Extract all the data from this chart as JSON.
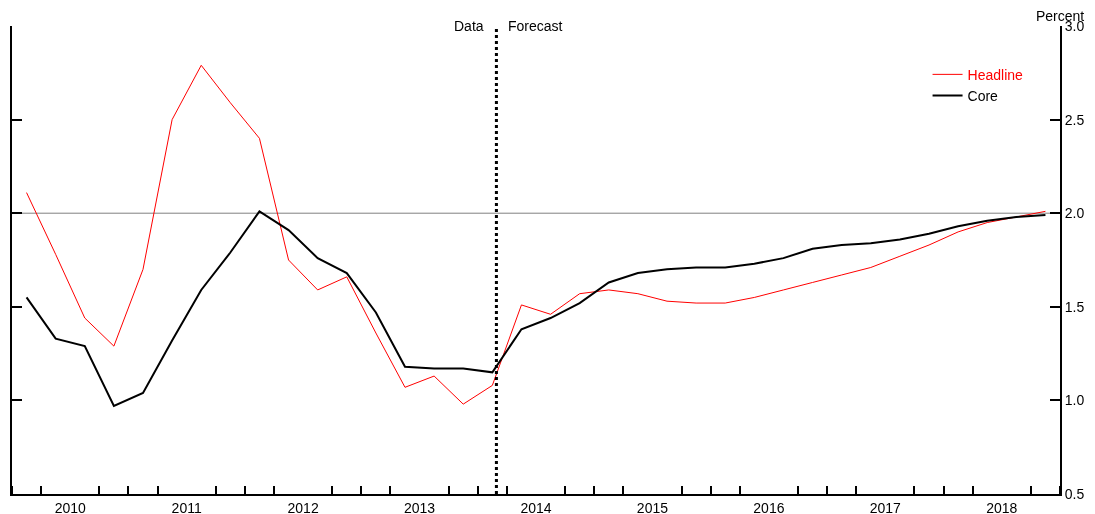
{
  "chart_data": {
    "type": "line",
    "ylabel": "Percent",
    "x": [
      2010.125,
      2010.375,
      2010.625,
      2010.875,
      2011.125,
      2011.375,
      2011.625,
      2011.875,
      2012.125,
      2012.375,
      2012.625,
      2012.875,
      2013.125,
      2013.375,
      2013.625,
      2013.875,
      2014.125,
      2014.375,
      2014.625,
      2014.875,
      2015.125,
      2015.375,
      2015.625,
      2015.875,
      2016.125,
      2016.375,
      2016.625,
      2016.875,
      2017.125,
      2017.375,
      2017.625,
      2017.875,
      2018.125,
      2018.375,
      2018.625,
      2018.875
    ],
    "series": [
      {
        "name": "Headline",
        "color": "#ff0000",
        "values": [
          2.11,
          1.78,
          1.44,
          1.29,
          1.7,
          2.5,
          2.79,
          2.59,
          2.4,
          1.75,
          1.59,
          1.66,
          1.36,
          1.07,
          1.13,
          0.98,
          1.08,
          1.51,
          1.46,
          1.57,
          1.59,
          1.57,
          1.53,
          1.52,
          1.52,
          1.55,
          1.59,
          1.63,
          1.67,
          1.71,
          1.77,
          1.83,
          1.9,
          1.95,
          1.98,
          2.01
        ]
      },
      {
        "name": "Core",
        "color": "#000000",
        "values": [
          1.55,
          1.33,
          1.29,
          0.97,
          1.04,
          1.32,
          1.59,
          1.79,
          2.01,
          1.91,
          1.76,
          1.68,
          1.47,
          1.18,
          1.17,
          1.17,
          1.15,
          1.38,
          1.44,
          1.52,
          1.63,
          1.68,
          1.7,
          1.71,
          1.71,
          1.73,
          1.76,
          1.81,
          1.83,
          1.84,
          1.86,
          1.89,
          1.93,
          1.96,
          1.98,
          1.99
        ]
      }
    ],
    "xlim": [
      2010,
      2019
    ],
    "xticks": [
      {
        "value": 2010,
        "label": null
      },
      {
        "value": 2010.25,
        "label": null
      },
      {
        "value": 2010.5,
        "label": "2010"
      },
      {
        "value": 2010.75,
        "label": null
      },
      {
        "value": 2011,
        "label": null
      },
      {
        "value": 2011.25,
        "label": null
      },
      {
        "value": 2011.5,
        "label": "2011"
      },
      {
        "value": 2011.75,
        "label": null
      },
      {
        "value": 2012,
        "label": null
      },
      {
        "value": 2012.25,
        "label": null
      },
      {
        "value": 2012.5,
        "label": "2012"
      },
      {
        "value": 2012.75,
        "label": null
      },
      {
        "value": 2013,
        "label": null
      },
      {
        "value": 2013.25,
        "label": null
      },
      {
        "value": 2013.5,
        "label": "2013"
      },
      {
        "value": 2013.75,
        "label": null
      },
      {
        "value": 2014,
        "label": null
      },
      {
        "value": 2014.25,
        "label": null
      },
      {
        "value": 2014.5,
        "label": "2014"
      },
      {
        "value": 2014.75,
        "label": null
      },
      {
        "value": 2015,
        "label": null
      },
      {
        "value": 2015.25,
        "label": null
      },
      {
        "value": 2015.5,
        "label": "2015"
      },
      {
        "value": 2015.75,
        "label": null
      },
      {
        "value": 2016,
        "label": null
      },
      {
        "value": 2016.25,
        "label": null
      },
      {
        "value": 2016.5,
        "label": "2016"
      },
      {
        "value": 2016.75,
        "label": null
      },
      {
        "value": 2017,
        "label": null
      },
      {
        "value": 2017.25,
        "label": null
      },
      {
        "value": 2017.5,
        "label": "2017"
      },
      {
        "value": 2017.75,
        "label": null
      },
      {
        "value": 2018,
        "label": null
      },
      {
        "value": 2018.25,
        "label": null
      },
      {
        "value": 2018.5,
        "label": "2018"
      },
      {
        "value": 2018.75,
        "label": null
      },
      {
        "value": 2019,
        "label": null
      }
    ],
    "ylim": [
      0.5,
      3.0
    ],
    "yticks": [
      {
        "value": 0.5,
        "label": "0.5"
      },
      {
        "value": 1,
        "label": "1.0"
      },
      {
        "value": 1.5,
        "label": "1.5"
      },
      {
        "value": 2,
        "label": "2.0"
      },
      {
        "value": 2.5,
        "label": "2.5"
      },
      {
        "value": 3,
        "label": "3.0"
      }
    ],
    "ref_lines": [
      {
        "axis": "y",
        "value": 2,
        "color": "#808080",
        "line_style": "solid"
      },
      {
        "axis": "x",
        "value": 2014.16,
        "color": "#000000",
        "line_style": "dotted"
      }
    ],
    "annotations": [
      "Data",
      "Forecast"
    ],
    "legend": "top right",
    "grid": false,
    "marker": "none",
    "line_style": "solid"
  }
}
